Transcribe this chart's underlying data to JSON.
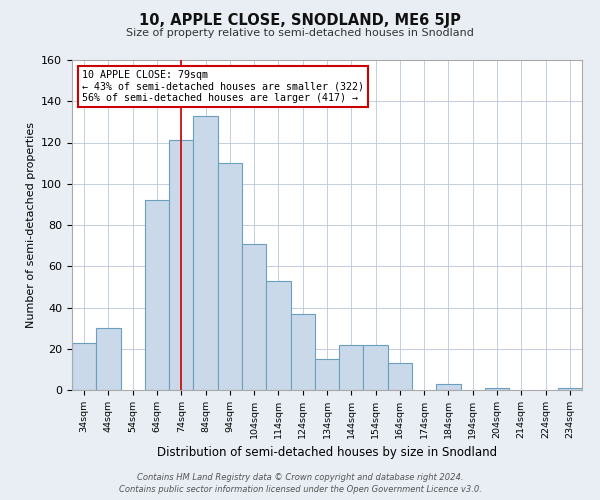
{
  "title": "10, APPLE CLOSE, SNODLAND, ME6 5JP",
  "subtitle": "Size of property relative to semi-detached houses in Snodland",
  "xlabel": "Distribution of semi-detached houses by size in Snodland",
  "ylabel": "Number of semi-detached properties",
  "bar_edges": [
    34,
    44,
    54,
    64,
    74,
    84,
    94,
    104,
    114,
    124,
    134,
    144,
    154,
    164,
    174,
    184,
    194,
    204,
    214,
    224,
    234,
    244
  ],
  "bar_heights": [
    23,
    30,
    0,
    92,
    121,
    133,
    110,
    71,
    53,
    37,
    15,
    22,
    22,
    13,
    0,
    3,
    0,
    1,
    0,
    0,
    1
  ],
  "property_size": 79,
  "bar_color": "#cad9ea",
  "bar_edge_color": "#6a9fc0",
  "vline_color": "#cc0000",
  "annotation_box_edge_color": "#cc0000",
  "annotation_line1": "10 APPLE CLOSE: 79sqm",
  "annotation_line2": "← 43% of semi-detached houses are smaller (322)",
  "annotation_line3": "56% of semi-detached houses are larger (417) →",
  "ylim": [
    0,
    160
  ],
  "yticks": [
    0,
    20,
    40,
    60,
    80,
    100,
    120,
    140,
    160
  ],
  "footer_line1": "Contains HM Land Registry data © Crown copyright and database right 2024.",
  "footer_line2": "Contains public sector information licensed under the Open Government Licence v3.0.",
  "bg_color": "#e8eef4",
  "plot_bg_color": "#ffffff"
}
